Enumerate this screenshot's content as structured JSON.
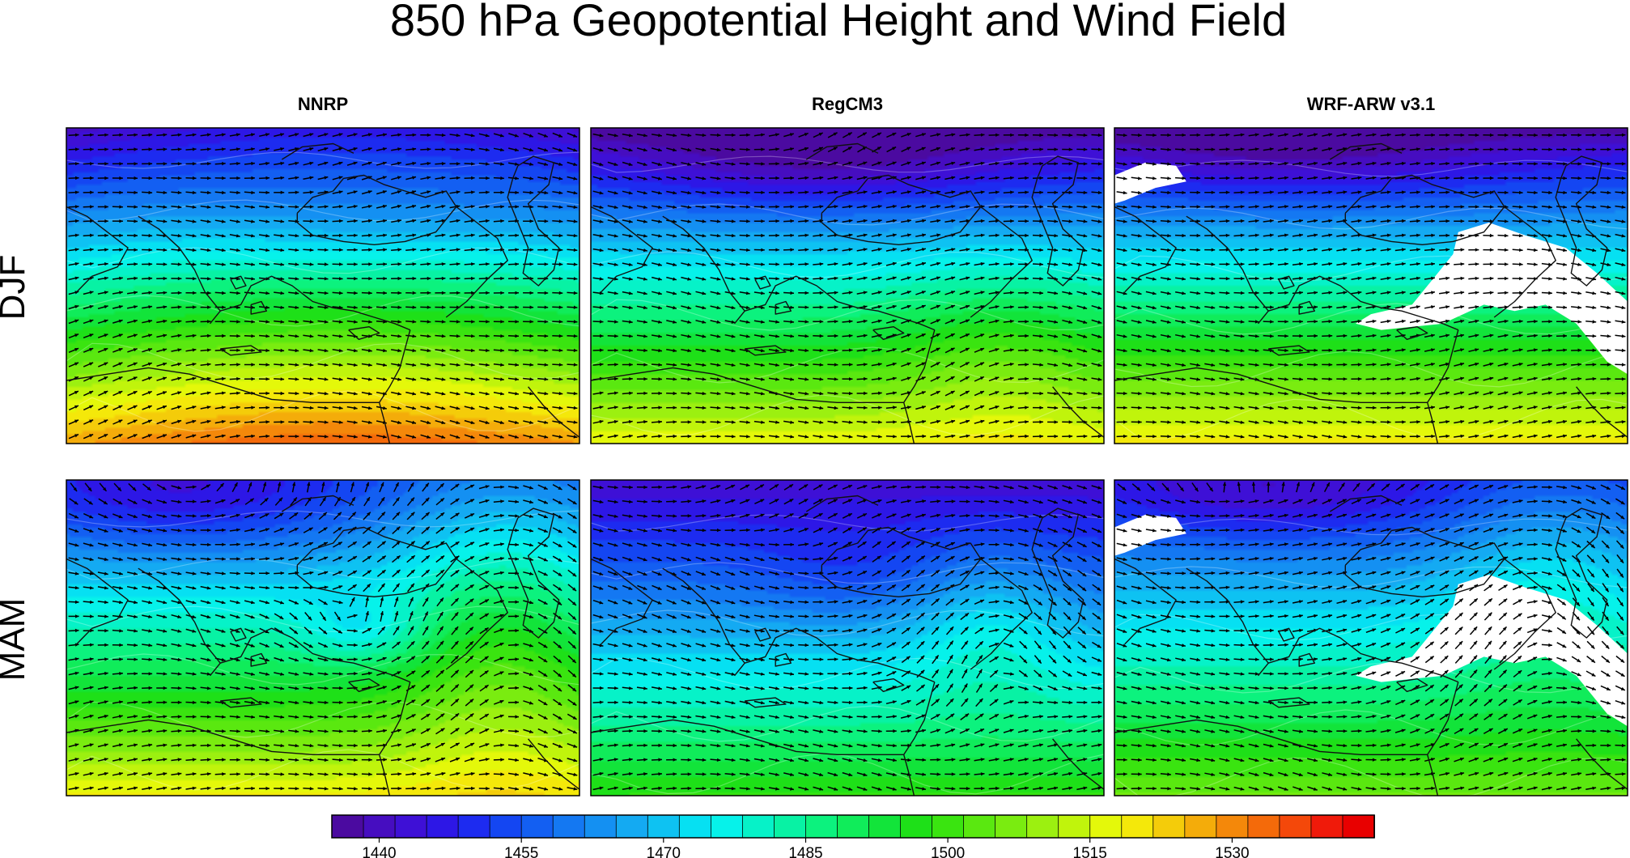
{
  "title": "850 hPa Geopotential Height and Wind Field",
  "columns": [
    {
      "key": "nnrp",
      "label": "NNRP"
    },
    {
      "key": "regcm3",
      "label": "RegCM3"
    },
    {
      "key": "wrf",
      "label": "WRF-ARW v3.1"
    }
  ],
  "rows": [
    {
      "key": "djf",
      "label": "DJF"
    },
    {
      "key": "mam",
      "label": "MAM"
    }
  ],
  "colorbar": {
    "min": 1435,
    "max": 1545,
    "step": 3,
    "tick_labels": [
      "1440",
      "1455",
      "1470",
      "1485",
      "1500",
      "1515",
      "1530"
    ],
    "colors": [
      "#4b0aa0",
      "#460dc0",
      "#3e10d6",
      "#2d17e6",
      "#1d2bf0",
      "#1446f2",
      "#135ff2",
      "#1478f2",
      "#1490f2",
      "#14aaf2",
      "#0ec2f2",
      "#06e0f2",
      "#06f2ea",
      "#06f2c8",
      "#08f2a4",
      "#0cf27e",
      "#10ec5a",
      "#12e43a",
      "#1ee018",
      "#3ae410",
      "#5ae810",
      "#7aec10",
      "#9cf010",
      "#c0f40c",
      "#e4f80a",
      "#f4e80a",
      "#f4cc0a",
      "#f4ac0a",
      "#f4880a",
      "#f46a0a",
      "#f4480a",
      "#f01a0a",
      "#e80000"
    ]
  },
  "colors": {
    "background": "#ffffff",
    "coastline": "#111111",
    "vector": "#000000",
    "missing": "#ffffff"
  }
}
